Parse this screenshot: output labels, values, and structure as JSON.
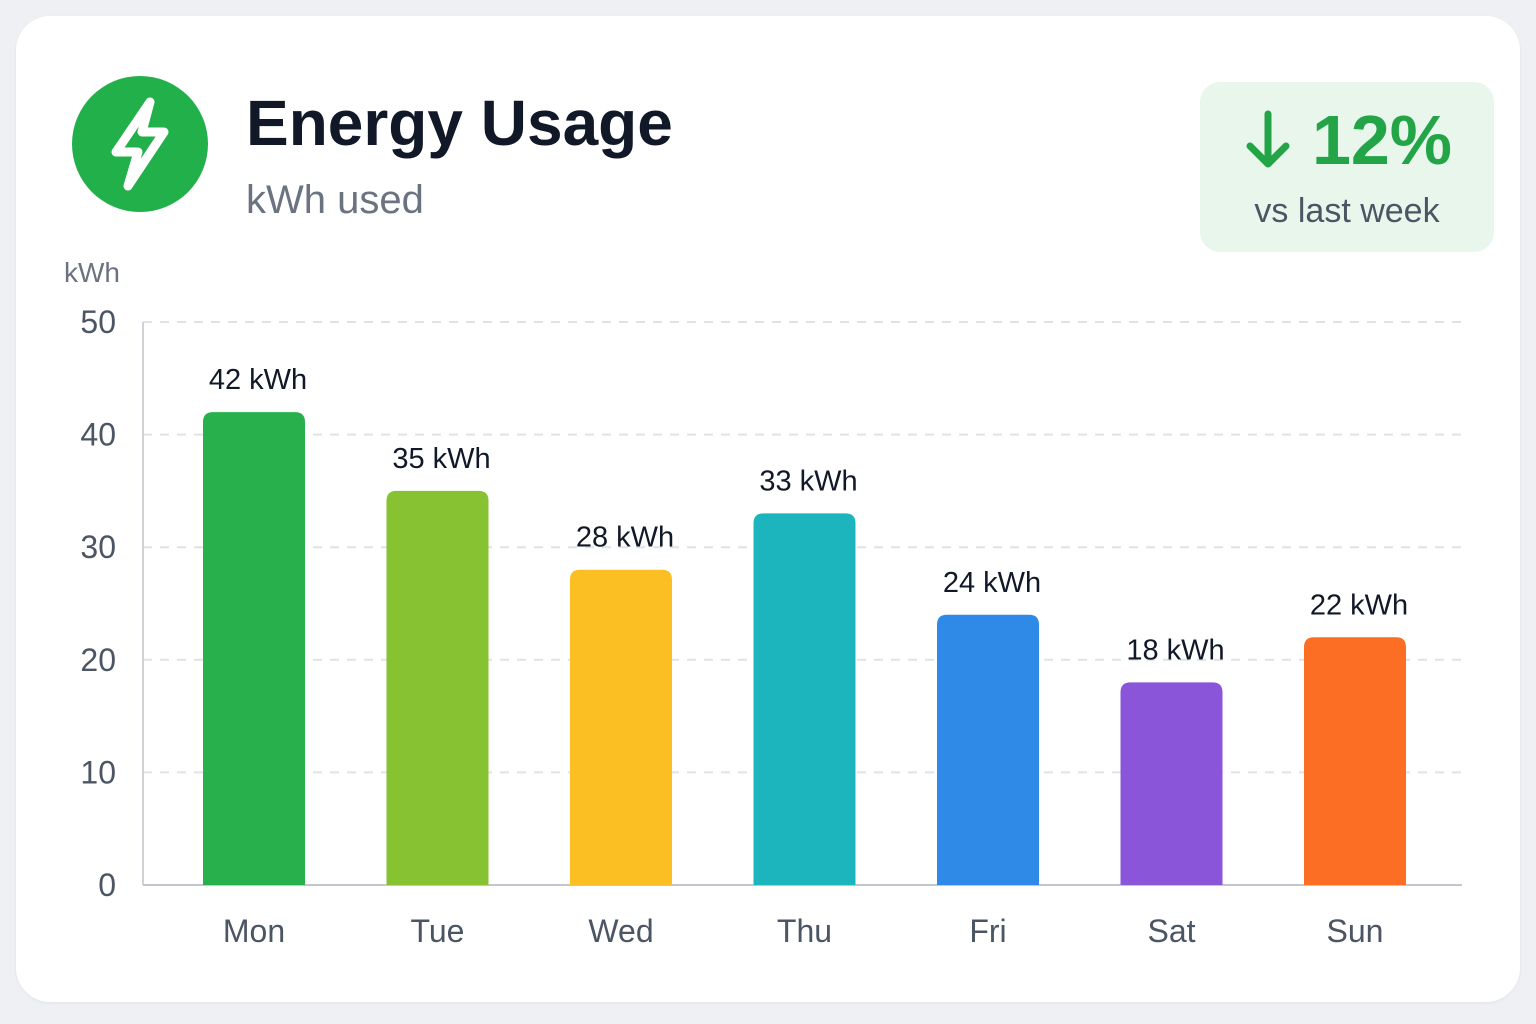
{
  "header": {
    "icon": "lightning-bolt-icon",
    "title": "Energy Usage",
    "subtitle": "kWh used"
  },
  "change": {
    "direction": "down",
    "icon": "arrow-down-icon",
    "value": "12%",
    "label": "vs last week",
    "color": "#22a447"
  },
  "chart_data": {
    "type": "bar",
    "title": "Energy Usage",
    "subtitle": "kWh used",
    "ylabel": "kWh",
    "xlabel": "",
    "ylim": [
      0,
      50
    ],
    "yticks": [
      0,
      10,
      20,
      30,
      40,
      50
    ],
    "grid": true,
    "categories": [
      "Mon",
      "Tue",
      "Wed",
      "Thu",
      "Fri",
      "Sat",
      "Sun"
    ],
    "values": [
      42,
      35,
      28,
      33,
      24,
      18,
      22
    ],
    "data_labels": [
      "42 kWh",
      "35 kWh",
      "28 kWh",
      "33 kWh",
      "24 kWh",
      "18 kWh",
      "22 kWh"
    ],
    "colors": [
      "#27b04b",
      "#86c232",
      "#fbbf24",
      "#1cb5bd",
      "#2f89e6",
      "#8a55d8",
      "#fb6e23"
    ]
  }
}
